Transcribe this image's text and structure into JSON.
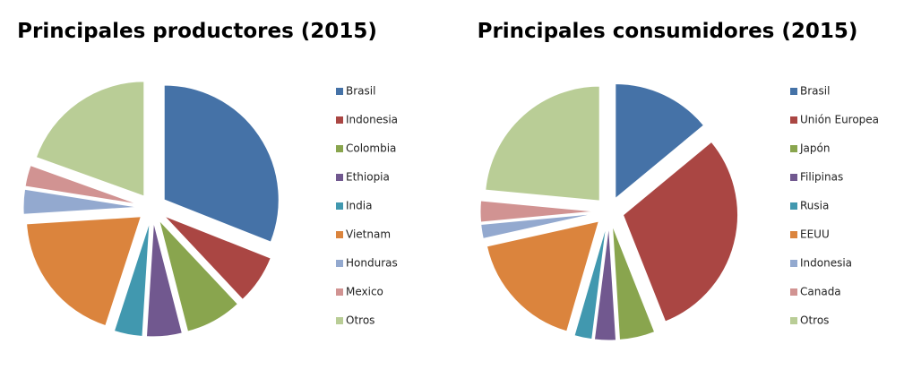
{
  "chart_data": [
    {
      "type": "pie",
      "title": "Principales productores (2015)",
      "categories": [
        "Brasil",
        "Indonesia",
        "Colombia",
        "Ethiopia",
        "India",
        "Vietnam",
        "Honduras",
        "Mexico",
        "Otros"
      ],
      "values": [
        31,
        7,
        8,
        5,
        4,
        19,
        3.5,
        3,
        19.5
      ],
      "colors": [
        "#4572A7",
        "#AA4643",
        "#89A54E",
        "#71588F",
        "#4198AF",
        "#DB843D",
        "#93A9CF",
        "#D19392",
        "#B9CD96"
      ]
    },
    {
      "type": "pie",
      "title": "Principales consumidores (2015)",
      "categories": [
        "Brasil",
        "Unión Europea",
        "Japón",
        "Filipinas",
        "Rusia",
        "EEUU",
        "Indonesia",
        "Canada",
        "Otros"
      ],
      "values": [
        14,
        30,
        5,
        3,
        2.5,
        17,
        2,
        3,
        23.5
      ],
      "colors": [
        "#4572A7",
        "#AA4643",
        "#89A54E",
        "#71588F",
        "#4198AF",
        "#DB843D",
        "#93A9CF",
        "#D19392",
        "#B9CD96"
      ]
    }
  ]
}
